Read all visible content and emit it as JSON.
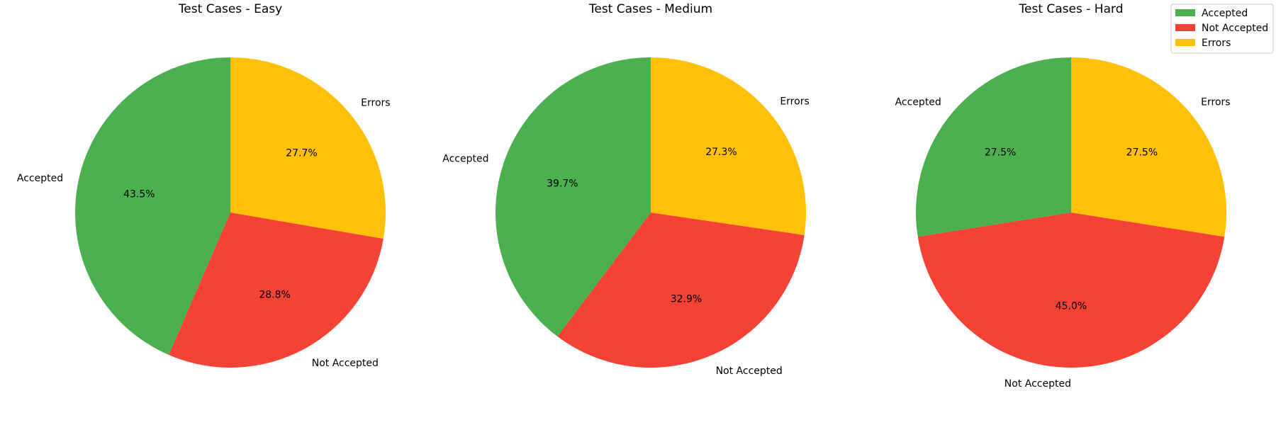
{
  "chart_data": [
    {
      "type": "pie",
      "title": "Test Cases - Easy",
      "categories": [
        "Accepted",
        "Not Accepted",
        "Errors"
      ],
      "values": [
        43.5,
        28.8,
        27.7
      ],
      "percent_labels": [
        "43.5%",
        "28.8%",
        "27.7%"
      ],
      "start_angle_deg": 90,
      "direction": "counterclockwise"
    },
    {
      "type": "pie",
      "title": "Test Cases - Medium",
      "categories": [
        "Accepted",
        "Not Accepted",
        "Errors"
      ],
      "values": [
        39.7,
        32.9,
        27.3
      ],
      "percent_labels": [
        "39.7%",
        "32.9%",
        "27.3%"
      ],
      "start_angle_deg": 90,
      "direction": "counterclockwise"
    },
    {
      "type": "pie",
      "title": "Test Cases - Hard",
      "categories": [
        "Accepted",
        "Not Accepted",
        "Errors"
      ],
      "values": [
        27.5,
        45.0,
        27.5
      ],
      "percent_labels": [
        "27.5%",
        "45.0%",
        "27.5%"
      ],
      "start_angle_deg": 90,
      "direction": "counterclockwise"
    }
  ],
  "legend": {
    "placement": "top-right",
    "entries": [
      "Accepted",
      "Not Accepted",
      "Errors"
    ]
  },
  "colors": {
    "Accepted": "#4caf50",
    "Not Accepted": "#f44336",
    "Errors": "#ffc107"
  }
}
